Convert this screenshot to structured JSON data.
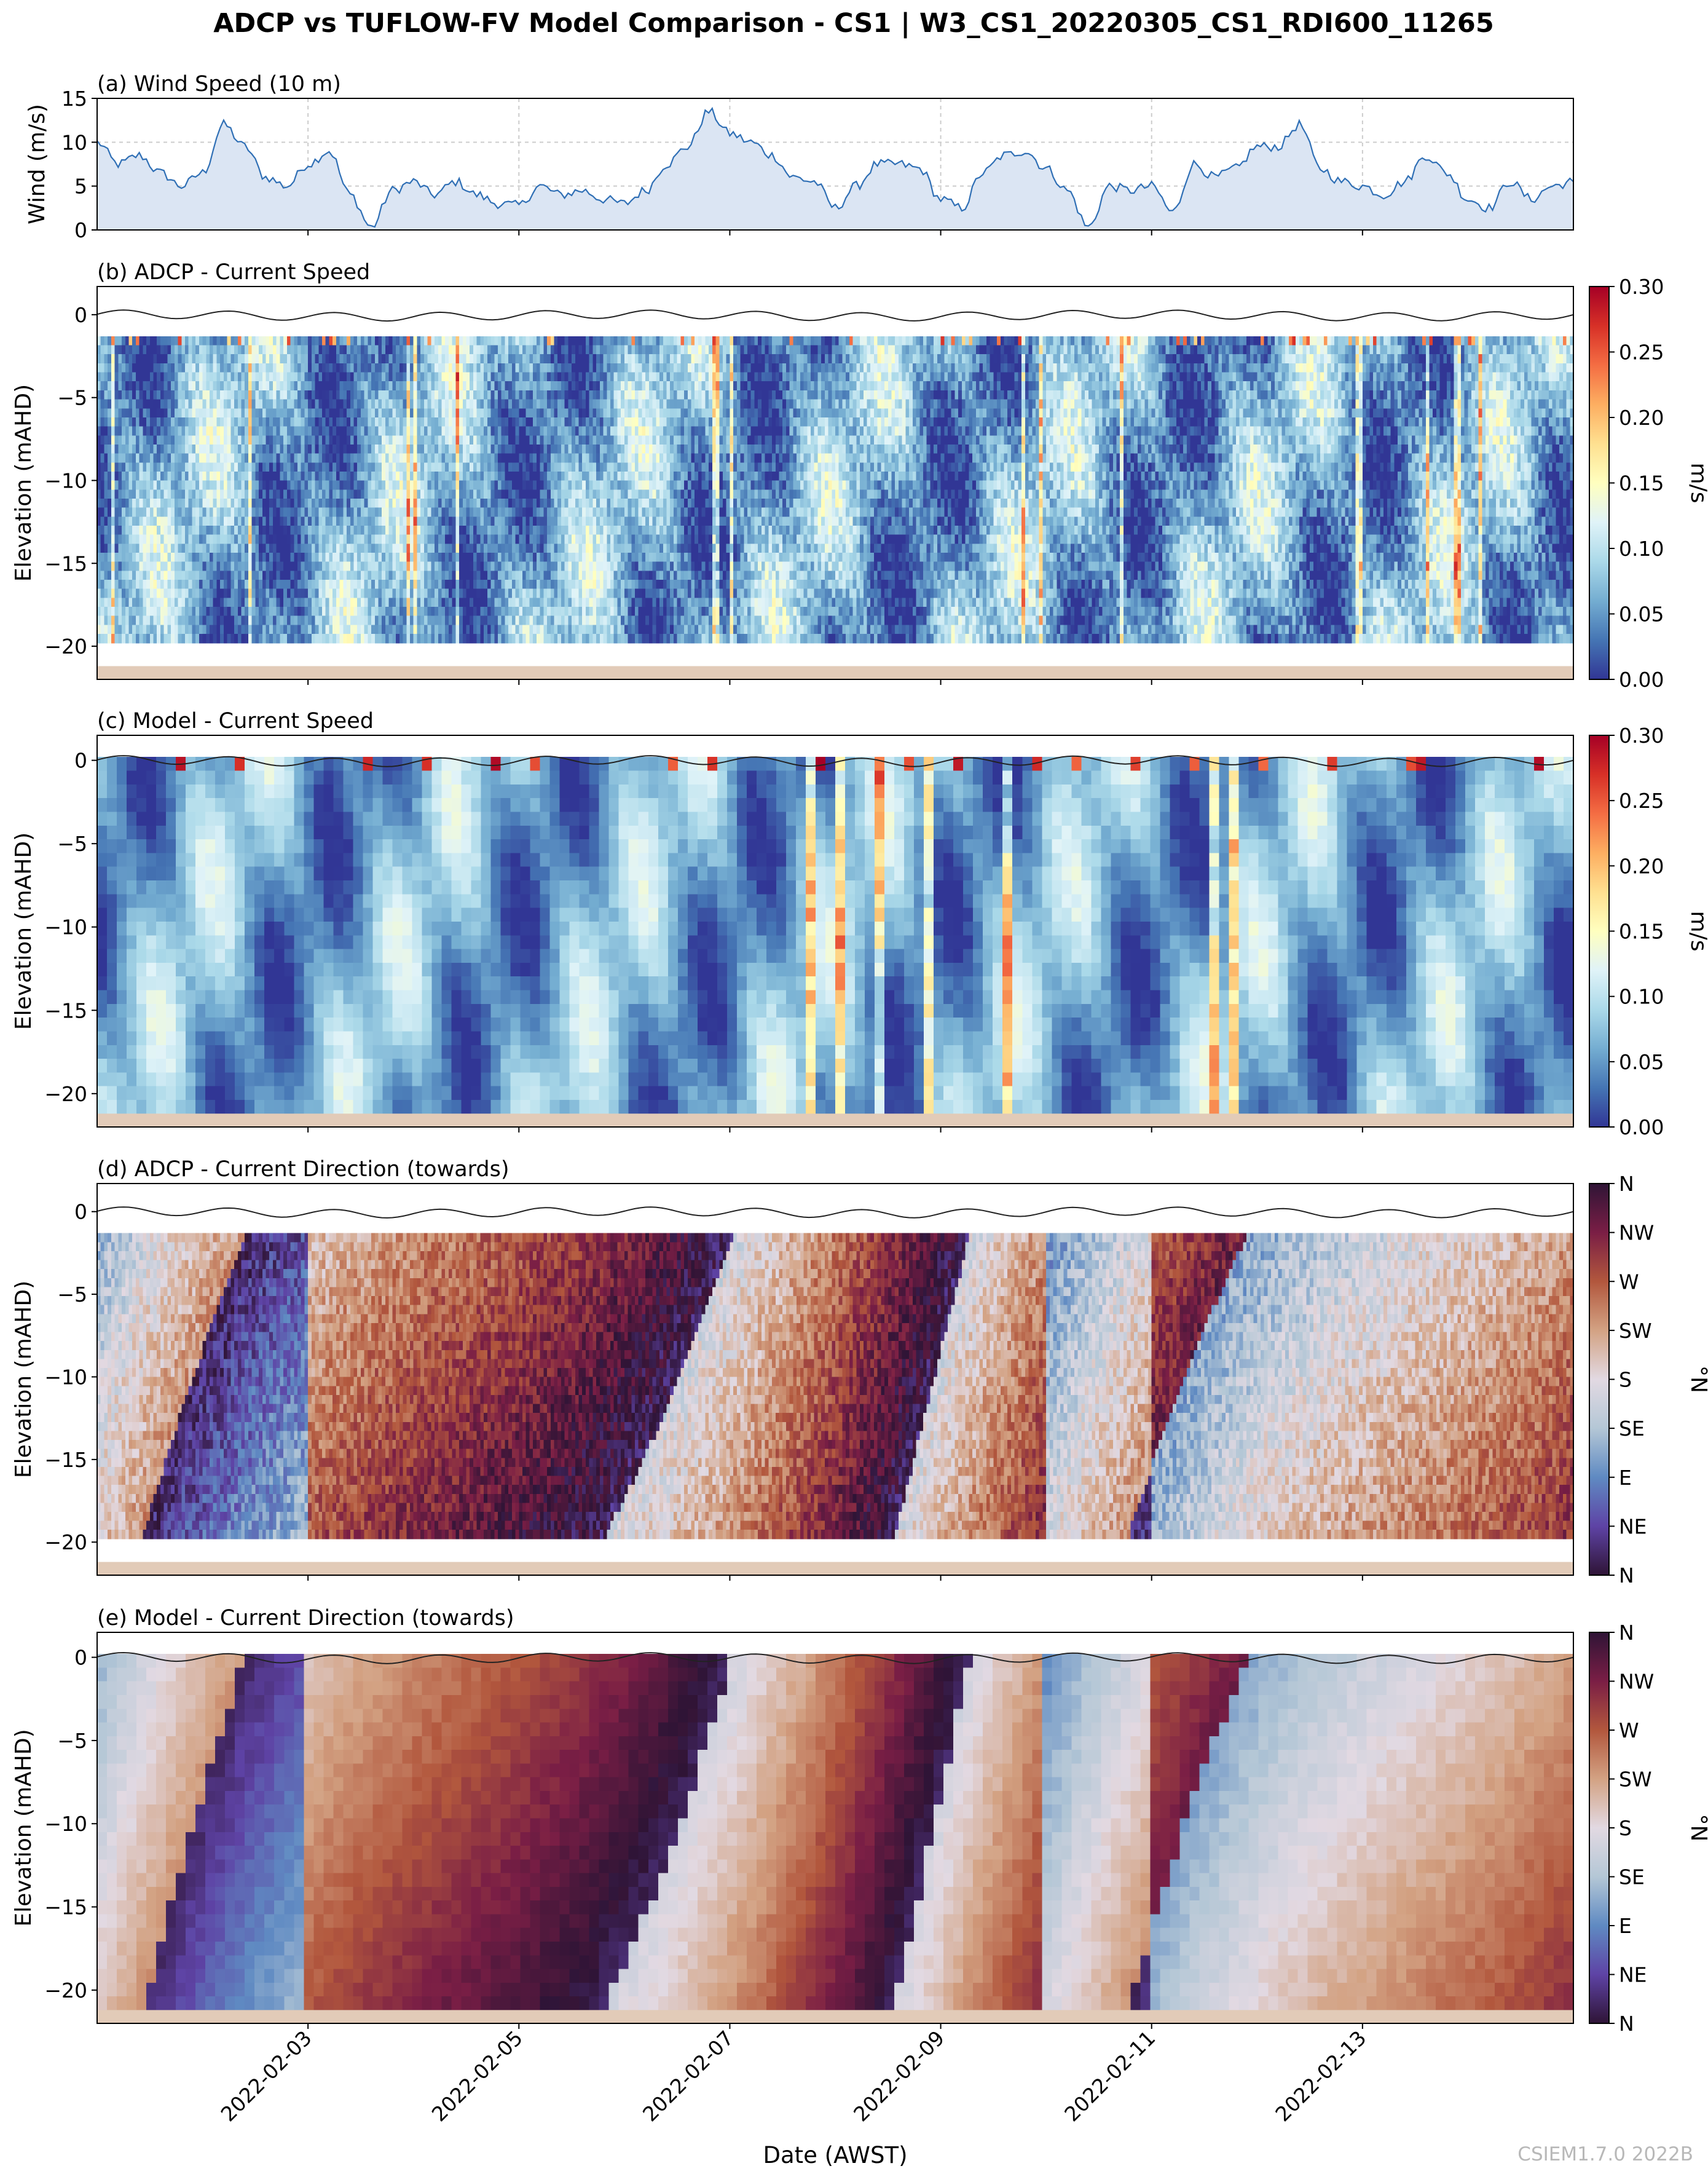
{
  "figure": {
    "title": "ADCP vs TUFLOW-FV Model Comparison - CS1 | W3_CS1_20220305_CS1_RDI600_11265",
    "xlabel": "Date (AWST)",
    "watermark": "CSIEM1.7.0 2022B"
  },
  "colors": {
    "wind_line": "#2f6fb5",
    "wind_fill": "#dbe5f3",
    "seabed": "#e2cbb8",
    "surface_line": "#222222"
  },
  "chart_data": [
    {
      "id": "a",
      "type": "area",
      "title": "(a) Wind Speed (10 m)",
      "ylabel": "Wind (m/s)",
      "xlim": [
        1.0,
        15.0
      ],
      "ylim": [
        0,
        15
      ],
      "yticks": [
        0,
        5,
        10,
        15
      ],
      "grid": true,
      "x": [
        1.0,
        1.2,
        1.4,
        1.6,
        1.8,
        2.0,
        2.2,
        2.4,
        2.6,
        2.8,
        3.0,
        3.2,
        3.4,
        3.6,
        3.8,
        4.0,
        4.2,
        4.4,
        4.6,
        4.8,
        5.0,
        5.2,
        5.4,
        5.6,
        5.8,
        6.0,
        6.2,
        6.4,
        6.6,
        6.8,
        7.0,
        7.2,
        7.4,
        7.6,
        7.8,
        8.0,
        8.2,
        8.4,
        8.6,
        8.8,
        9.0,
        9.2,
        9.4,
        9.6,
        9.8,
        10.0,
        10.2,
        10.4,
        10.6,
        10.8,
        11.0,
        11.2,
        11.4,
        11.6,
        11.8,
        12.0,
        12.2,
        12.4,
        12.6,
        12.8,
        13.0,
        13.2,
        13.4,
        13.6,
        13.8,
        14.0,
        14.2,
        14.4,
        14.6,
        14.8,
        15.0
      ],
      "values": [
        10,
        7.5,
        8.5,
        6.5,
        5.0,
        6.5,
        12,
        9.5,
        6.0,
        5.0,
        7.5,
        9.0,
        4.0,
        0.3,
        4.5,
        5.5,
        4.0,
        5.5,
        4.0,
        3.0,
        2.8,
        5.0,
        4.0,
        4.5,
        3.5,
        3.0,
        4.5,
        7.5,
        9.5,
        13.5,
        11.0,
        10.0,
        8.5,
        6.0,
        5.5,
        2.5,
        5.0,
        7.5,
        7.5,
        7.0,
        3.5,
        2.5,
        6.5,
        8.5,
        9.0,
        7.0,
        4.5,
        0.3,
        5.0,
        4.5,
        5.0,
        2.0,
        7.5,
        6.0,
        7.0,
        9.5,
        9.5,
        12.0,
        7.0,
        5.5,
        5.0,
        4.0,
        5.5,
        8.5,
        6.5,
        3.5,
        2.5,
        5.5,
        3.5,
        5.0,
        5.5
      ]
    },
    {
      "id": "b",
      "type": "heatmap",
      "title": "(b) ADCP - Current Speed",
      "ylabel": "Elevation (mAHD)",
      "colorbar_label": "m/s",
      "colorbar_ticks": [
        "0.30",
        "0.25",
        "0.20",
        "0.15",
        "0.10",
        "0.05",
        "0.00"
      ],
      "vmin": 0.0,
      "vmax": 0.3,
      "ylim": [
        -22,
        1.7
      ],
      "yticks": [
        0,
        -5,
        -10,
        -15,
        -20
      ],
      "data_top": -1.3,
      "data_bottom": -19.8,
      "seabed_top": -21.2,
      "surface_line": true
    },
    {
      "id": "c",
      "type": "heatmap",
      "title": "(c) Model - Current Speed",
      "ylabel": "Elevation (mAHD)",
      "colorbar_label": "m/s",
      "colorbar_ticks": [
        "0.30",
        "0.25",
        "0.20",
        "0.15",
        "0.10",
        "0.05",
        "0.00"
      ],
      "vmin": 0.0,
      "vmax": 0.3,
      "ylim": [
        -22,
        1.5
      ],
      "yticks": [
        0,
        -5,
        -10,
        -15,
        -20
      ],
      "data_top": 0.2,
      "data_bottom": -21.2,
      "seabed_top": -21.2,
      "surface_line": true
    },
    {
      "id": "d",
      "type": "heatmap",
      "title": "(d) ADCP - Current Direction (towards)",
      "ylabel": "Elevation (mAHD)",
      "colorbar_label": "°N",
      "colorbar_ticks": [
        "N",
        "NW",
        "W",
        "SW",
        "S",
        "SE",
        "E",
        "NE",
        "N"
      ],
      "vmin": 0,
      "vmax": 360,
      "ylim": [
        -22,
        1.7
      ],
      "yticks": [
        0,
        -5,
        -10,
        -15,
        -20
      ],
      "data_top": -1.3,
      "data_bottom": -19.8,
      "seabed_top": -21.2,
      "surface_line": true
    },
    {
      "id": "e",
      "type": "heatmap",
      "title": "(e) Model - Current Direction (towards)",
      "ylabel": "Elevation (mAHD)",
      "colorbar_label": "°N",
      "colorbar_ticks": [
        "N",
        "NW",
        "W",
        "SW",
        "S",
        "SE",
        "E",
        "NE",
        "N"
      ],
      "vmin": 0,
      "vmax": 360,
      "ylim": [
        -22,
        1.5
      ],
      "yticks": [
        0,
        -5,
        -10,
        -15,
        -20
      ],
      "data_top": 0.2,
      "data_bottom": -21.2,
      "seabed_top": -21.2,
      "surface_line": true
    }
  ],
  "x_axis": {
    "xlim": [
      1.0,
      15.0
    ],
    "ticks": [
      {
        "day": 3,
        "label": "2022-02-03"
      },
      {
        "day": 5,
        "label": "2022-02-05"
      },
      {
        "day": 7,
        "label": "2022-02-07"
      },
      {
        "day": 9,
        "label": "2022-02-09"
      },
      {
        "day": 11,
        "label": "2022-02-11"
      },
      {
        "day": 13,
        "label": "2022-02-13"
      }
    ]
  }
}
